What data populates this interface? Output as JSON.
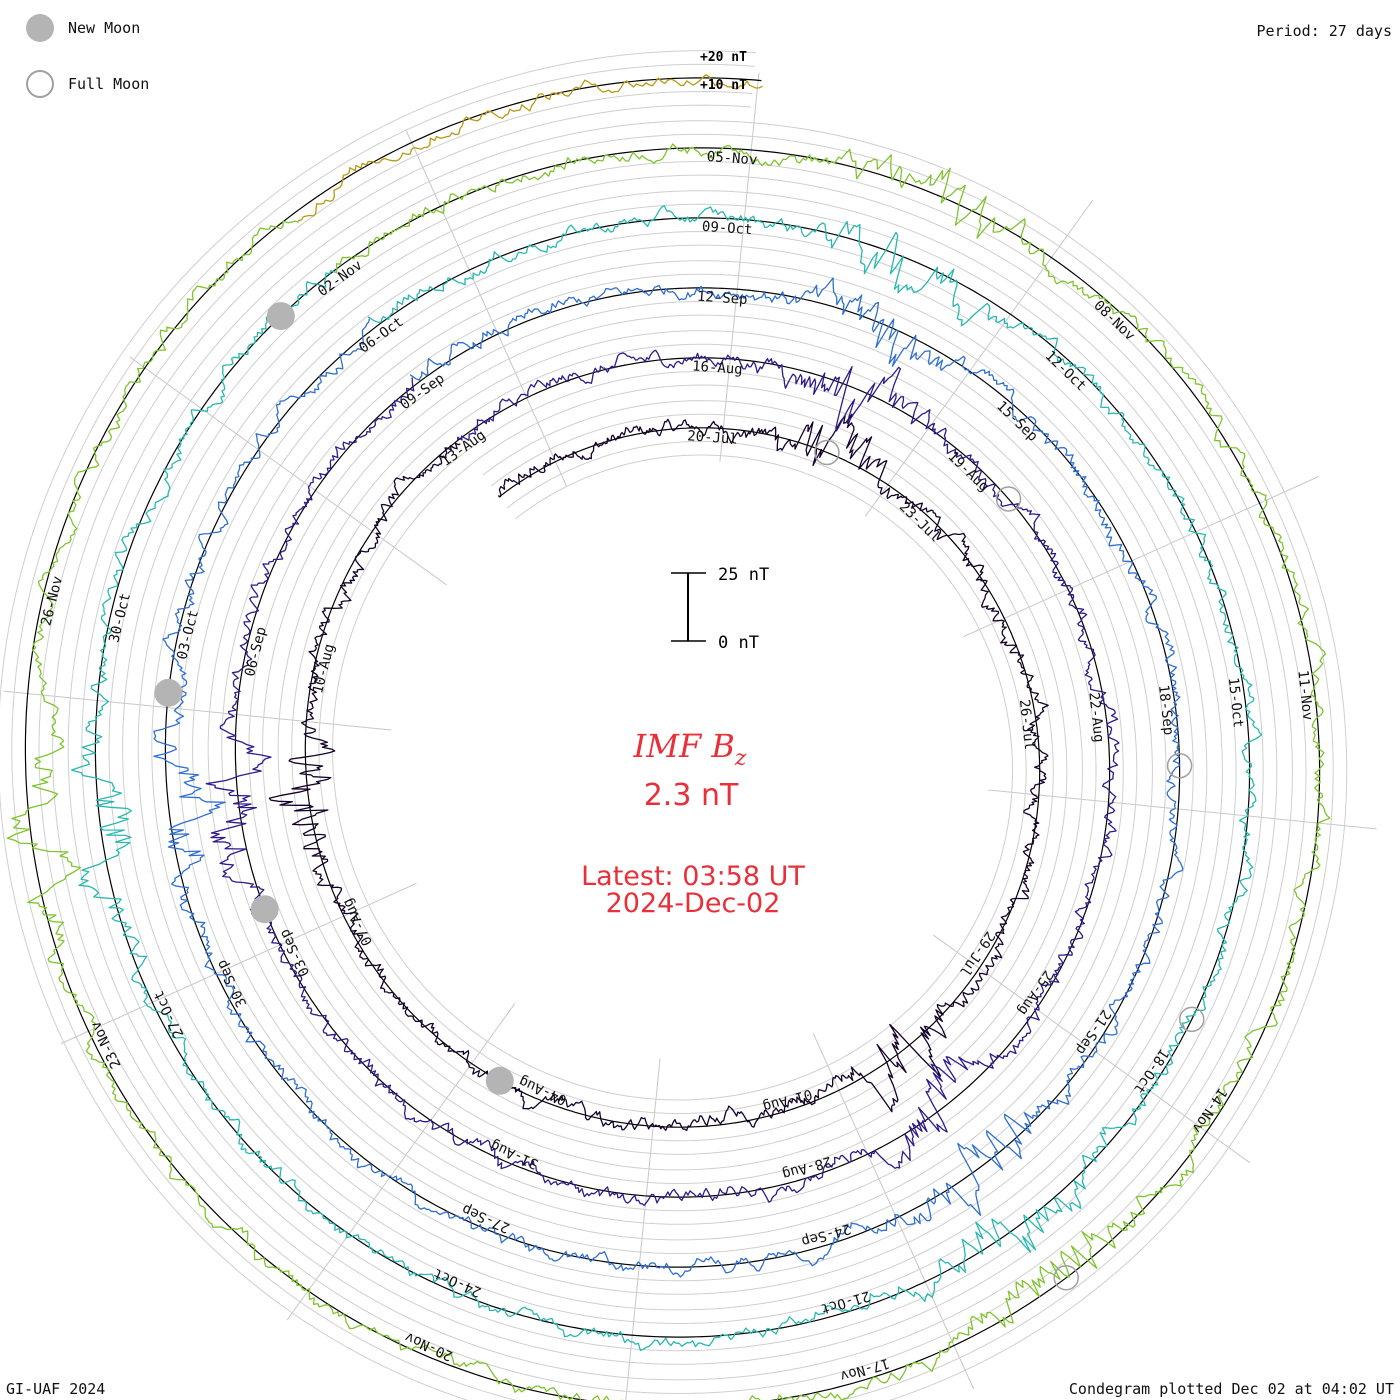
{
  "legend": {
    "new_moon": "New Moon",
    "full_moon": "Full Moon"
  },
  "header": {
    "period": "Period: 27 days"
  },
  "footer": {
    "credit": "GI-UAF 2024",
    "plotted": "Condegram plotted Dec 02 at 04:02 UT"
  },
  "center": {
    "title_main": "IMF B",
    "title_sub": "z",
    "value": "2.3 nT",
    "latest_label": "Latest: 03:58 UT",
    "latest_date": "2024-Dec-02"
  },
  "chart_data": {
    "type": "line",
    "subtype": "condegram-spiral",
    "title": "IMF Bz",
    "unit": "nT",
    "period_days": 27,
    "scale_bar": {
      "top_label": "25 nT",
      "bottom_label": "0 nT",
      "top": 25,
      "bottom": 0
    },
    "ring_scale_labels": [
      "+20 nT",
      "+10 nT"
    ],
    "ring_scale_values": [
      20,
      10
    ],
    "start_date": "2024-07-17",
    "end_date": "2024-12-02",
    "latest_value": 2.3,
    "date_labels": [
      "20-Jul",
      "23-Jul",
      "26-Jul",
      "29-Jul",
      "01-Aug",
      "04-Aug",
      "07-Aug",
      "10-Aug",
      "13-Aug",
      "16-Aug",
      "19-Aug",
      "22-Aug",
      "25-Aug",
      "28-Aug",
      "31-Aug",
      "03-Sep",
      "06-Sep",
      "09-Sep",
      "12-Sep",
      "15-Sep",
      "18-Sep",
      "21-Sep",
      "24-Sep",
      "27-Sep",
      "30-Sep",
      "03-Oct",
      "06-Oct",
      "09-Oct",
      "12-Oct",
      "15-Oct",
      "18-Oct",
      "21-Oct",
      "24-Oct",
      "27-Oct",
      "30-Oct",
      "02-Nov",
      "05-Nov",
      "08-Nov",
      "11-Nov",
      "14-Nov",
      "17-Nov",
      "20-Nov",
      "23-Nov",
      "26-Nov"
    ],
    "new_moons": [
      "2024-08-04",
      "2024-09-03",
      "2024-10-02",
      "2024-11-01"
    ],
    "full_moons": [
      "2024-07-21",
      "2024-08-19",
      "2024-09-18",
      "2024-10-17",
      "2024-11-15"
    ],
    "series_colors": [
      "#14002a",
      "#2e1a8c",
      "#2f6fd0",
      "#27b8b0",
      "#7ec42c",
      "#b89a10",
      "#c0601a",
      "#c01810"
    ]
  }
}
